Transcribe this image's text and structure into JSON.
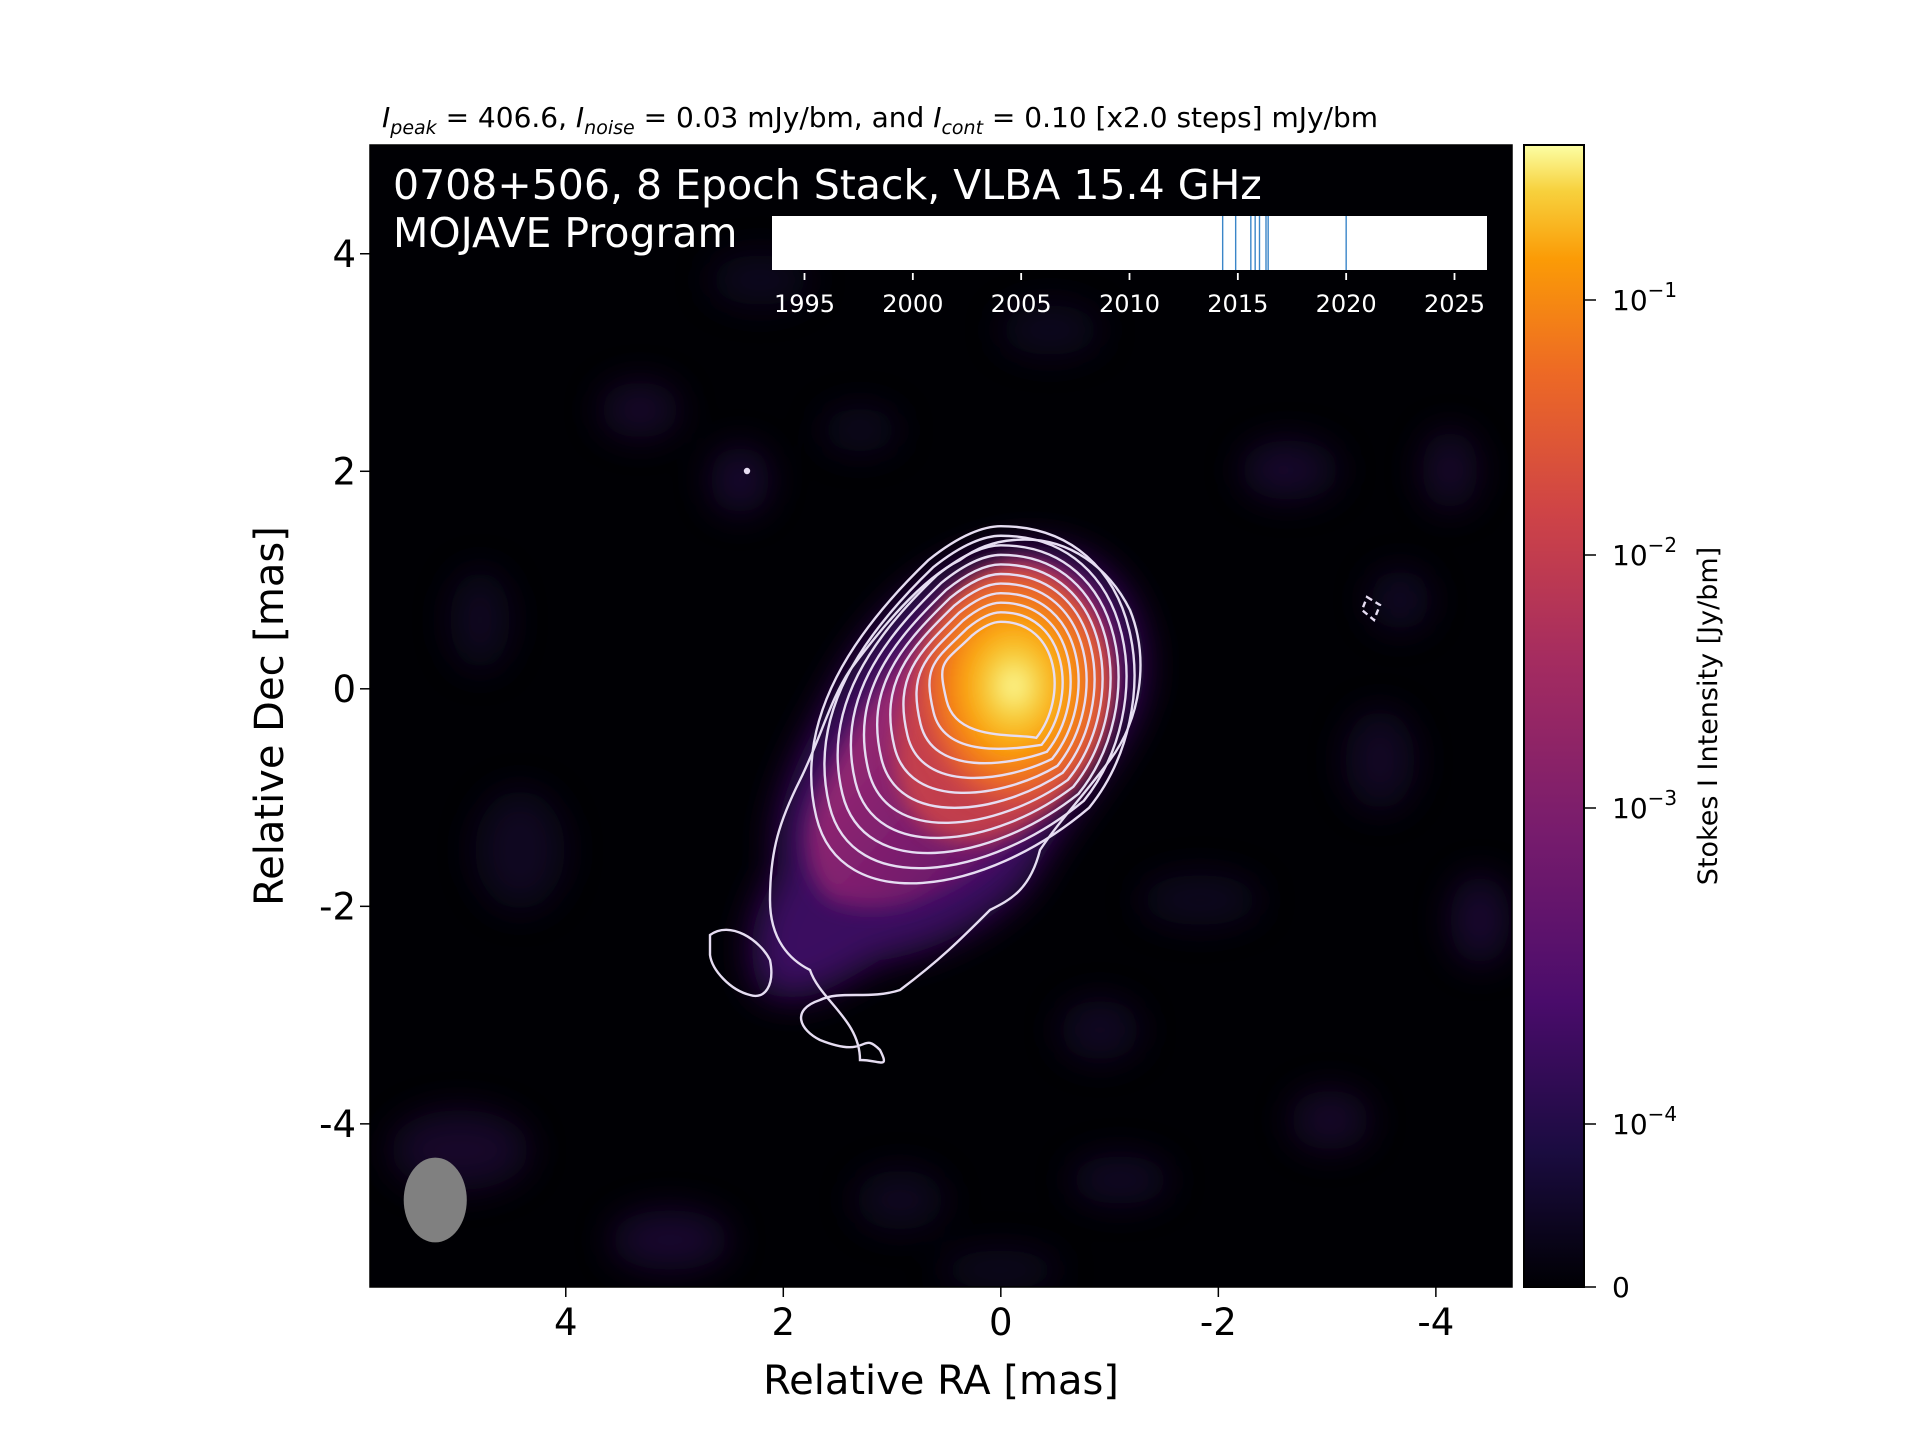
{
  "header": {
    "peak_symbol": "I",
    "peak_sub": "peak",
    "peak_text": " = 406.6, ",
    "noise_symbol": "I",
    "noise_sub": "noise",
    "noise_text": " = 0.03 mJy/bm, and ",
    "cont_symbol": "I",
    "cont_sub": "cont",
    "cont_text": " = 0.10 [x2.0 steps] mJy/bm"
  },
  "overlay": {
    "title_line1": "0708+506, 8 Epoch Stack, VLBA 15.4 GHz",
    "title_line2": "MOJAVE Program"
  },
  "chart_data": {
    "type": "heatmap",
    "title": "0708+506, 8 Epoch Stack, VLBA 15.4 GHz",
    "subtitle": "MOJAVE Program",
    "xlabel": "Relative RA [mas]",
    "ylabel": "Relative Dec [mas]",
    "xlim": [
      5.8,
      -4.7
    ],
    "ylim": [
      -5.5,
      5.0
    ],
    "xticks": [
      4,
      2,
      0,
      -2,
      -4
    ],
    "yticks": [
      4,
      2,
      0,
      -2,
      -4
    ],
    "xtick_labels": [
      "4",
      "2",
      "0",
      "-2",
      "-4"
    ],
    "ytick_labels": [
      "4",
      "2",
      "0",
      "-2",
      "-4"
    ],
    "colormap": "inferno",
    "colorbar": {
      "label": "Stokes I Intensity [Jy/bm]",
      "scale": "log",
      "ticks": [
        {
          "base": "10",
          "exp": "−1"
        },
        {
          "base": "10",
          "exp": "−2"
        },
        {
          "base": "10",
          "exp": "−3"
        },
        {
          "base": "10",
          "exp": "−4"
        },
        {
          "base": "0",
          "exp": ""
        }
      ]
    },
    "peak_mJy_per_bm": 406.6,
    "noise_mJy_per_bm": 0.03,
    "lowest_contour_mJy_per_bm": 0.1,
    "contour_step_factor": 2.0,
    "core": {
      "ra": 0.0,
      "dec": 0.0
    },
    "beam": {
      "ra": 5.2,
      "dec": -4.7,
      "major_mas": 0.78,
      "minor_mas": 0.58,
      "pa_deg": 0
    },
    "epoch_timeline": {
      "xlim": [
        1993.5,
        2026.5
      ],
      "ticks": [
        1995,
        2000,
        2005,
        2010,
        2015,
        2020,
        2025
      ],
      "tick_labels": [
        "1995",
        "2000",
        "2005",
        "2010",
        "2015",
        "2020",
        "2025"
      ],
      "epochs": [
        2014.3,
        2014.9,
        2015.6,
        2015.8,
        2016.0,
        2016.3,
        2016.4,
        2020.0
      ]
    }
  },
  "colors": {
    "contour": "#e6ddf2",
    "epoch_line": "#3a86c8",
    "beam": "#808080",
    "background": "#000004"
  }
}
